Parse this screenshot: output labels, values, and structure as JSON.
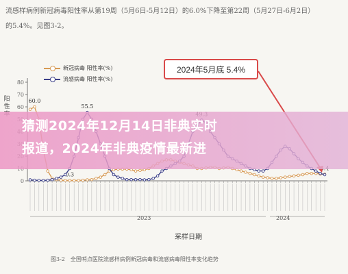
{
  "top_text": {
    "line1": "流感样病例新冠病毒阳性率从第19周（5月6日-5月12日）的6.0%下降至第22周（5月27日-6月2日）",
    "line2": "的5.4%。见图3-2。"
  },
  "callout": {
    "text": "2024年5月底 5.4%"
  },
  "banner": {
    "line1": "猜测2024年12月14日非典实时",
    "line2": "报道，2024年非典疫情最新进"
  },
  "caption": "图3-2　全国哨点医院流感样病例新冠病毒和流感病毒阳性率变化趋势",
  "colors": {
    "covid": "#d79a55",
    "flu": "#3b3f88",
    "callout": "#d94a4a",
    "banner": "#ec96c4"
  },
  "chart_data": {
    "type": "line",
    "xlabel": "采样日期",
    "ylabel": "阳性率",
    "ylim": [
      0,
      80
    ],
    "yticks": [
      0,
      10,
      20,
      30,
      40,
      50,
      60,
      70,
      80
    ],
    "year_labels": [
      "2023",
      "2024"
    ],
    "legend": [
      "新冠病毒 阳性率(%)",
      "流感病毒 阳性率(%)"
    ],
    "series": [
      {
        "name": "新冠病毒 阳性率(%)",
        "values": [
          58,
          60,
          50,
          25,
          8,
          2,
          1,
          0.5,
          0.3,
          0.3,
          0.3,
          0.3,
          0.5,
          0.8,
          1,
          2,
          3,
          5,
          8,
          9,
          9.5,
          9.5,
          9.5,
          9,
          8,
          8.5,
          9,
          10,
          12,
          14,
          16,
          17,
          17,
          16,
          15,
          14,
          13,
          12,
          10,
          10,
          10.5,
          11,
          11,
          10,
          10.5,
          11,
          10,
          9,
          8,
          7,
          6,
          5,
          4,
          3,
          2.5,
          2,
          2,
          2.5,
          3,
          3.5,
          4,
          4.5,
          5,
          6,
          6,
          6,
          5.5,
          5.4
        ],
        "labels": [
          {
            "index": 1,
            "text": "60.0"
          },
          {
            "index": 9,
            "text": "0.3"
          },
          {
            "index": 67,
            "text": "5.4"
          }
        ]
      },
      {
        "name": "流感病毒 阳性率(%)",
        "values": [
          0.8,
          0.5,
          0.4,
          0.3,
          0.5,
          1,
          2,
          3,
          5,
          10,
          20,
          35,
          50,
          55.5,
          50,
          40,
          30,
          20,
          10,
          5,
          3,
          2,
          1,
          1,
          1,
          1,
          0.8,
          1,
          2,
          4,
          8,
          10,
          12,
          14,
          16,
          20,
          30,
          40,
          45,
          49.3,
          47,
          40,
          35,
          30,
          25,
          20,
          18,
          16,
          14,
          12,
          10,
          9,
          8,
          8,
          10,
          15,
          20,
          25,
          28,
          26,
          22,
          18,
          15,
          12,
          10,
          8,
          6,
          5
        ],
        "labels": [
          {
            "index": 13,
            "text": "55.5"
          },
          {
            "index": 39,
            "text": "49.3"
          }
        ]
      }
    ],
    "grid": false,
    "legend_position": "top-left"
  }
}
